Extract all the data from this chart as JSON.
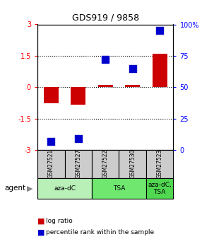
{
  "title": "GDS919 / 9858",
  "samples": [
    "GSM27521",
    "GSM27527",
    "GSM27522",
    "GSM27530",
    "GSM27523"
  ],
  "log_ratios": [
    -0.75,
    -0.82,
    0.12,
    0.12,
    1.6
  ],
  "percentile_ranks": [
    7,
    9,
    72,
    65,
    95
  ],
  "agent_spans": [
    {
      "label": "aza-dC",
      "start": 0,
      "end": 1,
      "color": "#b8f0b8"
    },
    {
      "label": "TSA",
      "start": 2,
      "end": 3,
      "color": "#70e870"
    },
    {
      "label": "aza-dC,\nTSA",
      "start": 4,
      "end": 4,
      "color": "#50d850"
    }
  ],
  "ylim": [
    -3,
    3
  ],
  "y_ticks_left": [
    -3,
    -1.5,
    0,
    1.5,
    3
  ],
  "y_ticks_right_vals": [
    0,
    25,
    50,
    75,
    100
  ],
  "y_ticks_right_labels": [
    "0",
    "25",
    "50",
    "75",
    "100%"
  ],
  "bar_color": "#cc0000",
  "dot_color": "#0000cc",
  "bar_width": 0.55,
  "dot_size": 45,
  "sample_box_color": "#cccccc",
  "background_color": "#ffffff",
  "legend_items": [
    {
      "label": "log ratio",
      "color": "#cc0000"
    },
    {
      "label": "percentile rank within the sample",
      "color": "#0000cc"
    }
  ]
}
